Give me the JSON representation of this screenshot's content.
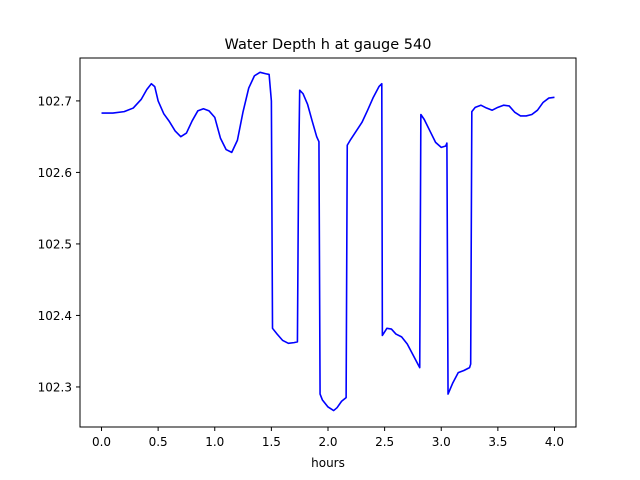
{
  "chart_data": {
    "type": "line",
    "title": "Water Depth h at gauge 540",
    "xlabel": "hours",
    "ylabel": "",
    "xlim": [
      -0.19,
      4.19
    ],
    "ylim": [
      102.244,
      102.76
    ],
    "x_ticks": [
      0.0,
      0.5,
      1.0,
      1.5,
      2.0,
      2.5,
      3.0,
      3.5,
      4.0
    ],
    "x_tick_labels": [
      "0.0",
      "0.5",
      "1.0",
      "1.5",
      "2.0",
      "2.5",
      "3.0",
      "3.5",
      "4.0"
    ],
    "y_ticks": [
      102.3,
      102.4,
      102.5,
      102.6,
      102.7
    ],
    "y_tick_labels": [
      "102.3",
      "102.4",
      "102.5",
      "102.6",
      "102.7"
    ],
    "grid": false,
    "line_color": "#0000ff",
    "series": [
      {
        "x": [
          0.0,
          0.1,
          0.2,
          0.28,
          0.35,
          0.4,
          0.44,
          0.47,
          0.5,
          0.55,
          0.6,
          0.65,
          0.7,
          0.75,
          0.8,
          0.85,
          0.9,
          0.95,
          1.0,
          1.05,
          1.1,
          1.15,
          1.2,
          1.25,
          1.3,
          1.35,
          1.4,
          1.45,
          1.48,
          1.5,
          1.51,
          1.55,
          1.6,
          1.65,
          1.7,
          1.73,
          1.74,
          1.75,
          1.78,
          1.82,
          1.86,
          1.9,
          1.92,
          1.93,
          1.95,
          2.0,
          2.05,
          2.08,
          2.12,
          2.16,
          2.17,
          2.2,
          2.25,
          2.3,
          2.35,
          2.4,
          2.45,
          2.475,
          2.48,
          2.52,
          2.56,
          2.6,
          2.65,
          2.7,
          2.75,
          2.8,
          2.81,
          2.82,
          2.85,
          2.9,
          2.95,
          3.0,
          3.04,
          3.05,
          3.06,
          3.1,
          3.15,
          3.2,
          3.25,
          3.26,
          3.27,
          3.3,
          3.35,
          3.4,
          3.45,
          3.5,
          3.55,
          3.6,
          3.65,
          3.7,
          3.75,
          3.8,
          3.85,
          3.9,
          3.95,
          4.0
        ],
        "y": [
          102.683,
          102.683,
          102.685,
          102.69,
          102.702,
          102.716,
          102.724,
          102.72,
          102.7,
          102.682,
          102.671,
          102.658,
          102.65,
          102.655,
          102.672,
          102.686,
          102.689,
          102.686,
          102.677,
          102.648,
          102.632,
          102.628,
          102.645,
          102.685,
          102.718,
          102.735,
          102.74,
          102.738,
          102.737,
          102.7,
          102.382,
          102.374,
          102.365,
          102.361,
          102.362,
          102.363,
          102.6,
          102.715,
          102.71,
          102.695,
          102.672,
          102.65,
          102.643,
          102.29,
          102.282,
          102.272,
          102.267,
          102.271,
          102.28,
          102.285,
          102.638,
          102.646,
          102.658,
          102.67,
          102.687,
          102.705,
          102.72,
          102.724,
          102.372,
          102.382,
          102.381,
          102.374,
          102.37,
          102.36,
          102.345,
          102.33,
          102.327,
          102.681,
          102.674,
          102.658,
          102.642,
          102.635,
          102.637,
          102.641,
          102.29,
          102.305,
          102.32,
          102.323,
          102.327,
          102.332,
          102.685,
          102.691,
          102.694,
          102.69,
          102.687,
          102.691,
          102.694,
          102.693,
          102.684,
          102.679,
          102.679,
          102.681,
          102.687,
          102.698,
          102.704,
          102.705
        ]
      }
    ]
  }
}
